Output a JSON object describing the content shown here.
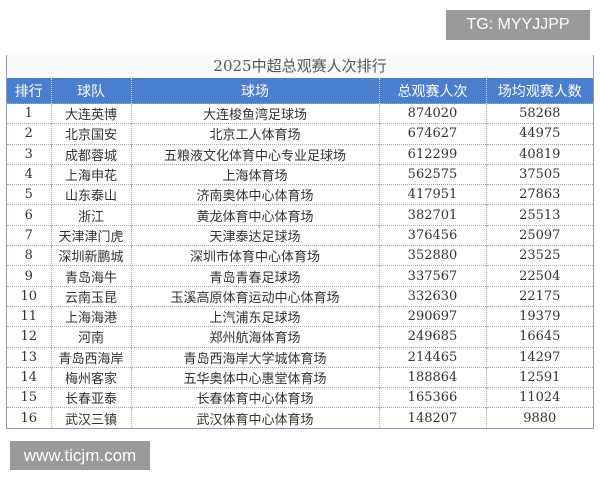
{
  "watermark_top": "TG: MYYJJPP",
  "watermark_bottom": "www.ticjm.com",
  "table": {
    "title": "2025中超总观赛人次排行",
    "headers": [
      "排行",
      "球队",
      "球场",
      "总观赛人次",
      "场均观赛人数"
    ],
    "rows": [
      [
        "1",
        "大连英博",
        "大连梭鱼湾足球场",
        "874020",
        "58268"
      ],
      [
        "2",
        "北京国安",
        "北京工人体育场",
        "674627",
        "44975"
      ],
      [
        "3",
        "成都蓉城",
        "五粮液文化体育中心专业足球场",
        "612299",
        "40819"
      ],
      [
        "4",
        "上海申花",
        "上海体育场",
        "562575",
        "37505"
      ],
      [
        "5",
        "山东泰山",
        "济南奥体中心体育场",
        "417951",
        "27863"
      ],
      [
        "6",
        "浙江",
        "黄龙体育中心体育场",
        "382701",
        "25513"
      ],
      [
        "7",
        "天津津门虎",
        "天津泰达足球场",
        "376456",
        "25097"
      ],
      [
        "8",
        "深圳新鹏城",
        "深圳市体育中心体育场",
        "352880",
        "23525"
      ],
      [
        "9",
        "青岛海牛",
        "青岛青春足球场",
        "337567",
        "22504"
      ],
      [
        "10",
        "云南玉昆",
        "玉溪高原体育运动中心体育场",
        "332630",
        "22175"
      ],
      [
        "11",
        "上海海港",
        "上汽浦东足球场",
        "290697",
        "19379"
      ],
      [
        "12",
        "河南",
        "郑州航海体育场",
        "249685",
        "16645"
      ],
      [
        "13",
        "青岛西海岸",
        "青岛西海岸大学城体育场",
        "214465",
        "14297"
      ],
      [
        "14",
        "梅州客家",
        "五华奥体中心惠堂体育场",
        "188864",
        "12591"
      ],
      [
        "15",
        "长春亚泰",
        "长春体育中心体育场",
        "165366",
        "11024"
      ],
      [
        "16",
        "武汉三镇",
        "武汉体育中心体育场",
        "148207",
        "9880"
      ]
    ]
  },
  "colors": {
    "header_bg": "#4a7fd0",
    "header_text": "#ffffff"
  }
}
